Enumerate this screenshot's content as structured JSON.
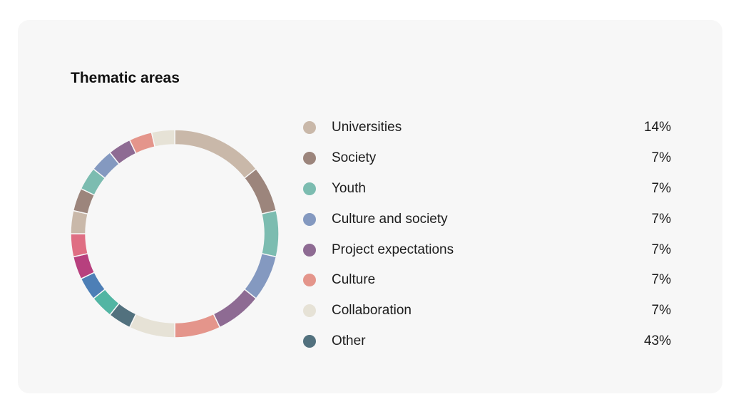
{
  "card": {
    "background": "#f7f7f7"
  },
  "chart_data": {
    "type": "pie",
    "variant": "donut",
    "title": "Thematic areas",
    "legend_placement": "right",
    "legend": [
      {
        "label": "Universities",
        "value": 14,
        "display": "14%",
        "color": "#c9b8a9"
      },
      {
        "label": "Society",
        "value": 7,
        "display": "7%",
        "color": "#9c857c"
      },
      {
        "label": "Youth",
        "value": 7,
        "display": "7%",
        "color": "#7cbcb0"
      },
      {
        "label": "Culture and society",
        "value": 7,
        "display": "7%",
        "color": "#8499c0"
      },
      {
        "label": "Project expectations",
        "value": 7,
        "display": "7%",
        "color": "#8e6b93"
      },
      {
        "label": "Culture",
        "value": 7,
        "display": "7%",
        "color": "#e4958b"
      },
      {
        "label": "Collaboration",
        "value": 7,
        "display": "7%",
        "color": "#e6e2d6"
      },
      {
        "label": "Other",
        "value": 43,
        "display": "43%",
        "color": "#52717e"
      }
    ],
    "ring_segments": [
      {
        "value": 14,
        "color": "#c9b8a9"
      },
      {
        "value": 7,
        "color": "#9c857c"
      },
      {
        "value": 7,
        "color": "#7cbcb0"
      },
      {
        "value": 7,
        "color": "#8499c0"
      },
      {
        "value": 7,
        "color": "#8e6b93"
      },
      {
        "value": 7,
        "color": "#e4958b"
      },
      {
        "value": 7,
        "color": "#e6e2d6"
      },
      {
        "value": 3.5,
        "color": "#52717e"
      },
      {
        "value": 3.5,
        "color": "#52b5a3"
      },
      {
        "value": 3.5,
        "color": "#4d7fb6"
      },
      {
        "value": 3.5,
        "color": "#b7407e"
      },
      {
        "value": 3.5,
        "color": "#df6e83"
      },
      {
        "value": 3.5,
        "color": "#c9b8a9"
      },
      {
        "value": 3.5,
        "color": "#9c857c"
      },
      {
        "value": 3.5,
        "color": "#7cbcb0"
      },
      {
        "value": 3.5,
        "color": "#8499c0"
      },
      {
        "value": 3.5,
        "color": "#8e6b93"
      },
      {
        "value": 3.5,
        "color": "#e4958b"
      },
      {
        "value": 3.5,
        "color": "#e6e2d6"
      }
    ]
  }
}
